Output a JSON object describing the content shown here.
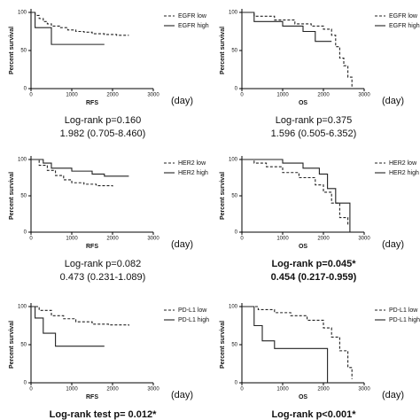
{
  "chart_data": [
    {
      "type": "line",
      "step": true,
      "xlabel": "RFS",
      "ylabel": "Percent survival",
      "annotation": "(day)",
      "stats": [
        "Log-rank p=0.160",
        "1.982 (0.705-8.460)"
      ],
      "stats_bold": false,
      "xlim": [
        0,
        3000
      ],
      "ylim": [
        0,
        100
      ],
      "xticks": [
        0,
        1000,
        2000,
        3000
      ],
      "yticks": [
        0,
        50,
        100
      ],
      "legend": "right",
      "series": [
        {
          "name": "EGFR low",
          "dashed": true,
          "color": "#222222",
          "x": [
            0,
            100,
            200,
            300,
            400,
            500,
            700,
            900,
            1100,
            1300,
            1500,
            1800,
            2100,
            2400
          ],
          "values": [
            100,
            96,
            92,
            88,
            85,
            82,
            80,
            77,
            75,
            74,
            72,
            71,
            70,
            70
          ]
        },
        {
          "name": "EGFR high",
          "dashed": false,
          "color": "#222222",
          "x": [
            0,
            100,
            500,
            1800
          ],
          "values": [
            100,
            80,
            58,
            58
          ]
        }
      ]
    },
    {
      "type": "line",
      "step": true,
      "xlabel": "OS",
      "ylabel": "Percent survival",
      "annotation": "(day)",
      "stats": [
        "Log-rank p=0.375",
        "1.596 (0.505-6.352)"
      ],
      "stats_bold": false,
      "xlim": [
        0,
        3000
      ],
      "ylim": [
        0,
        100
      ],
      "xticks": [
        0,
        1000,
        2000,
        3000
      ],
      "yticks": [
        0,
        50,
        100
      ],
      "legend": "right",
      "series": [
        {
          "name": "EGFR low",
          "dashed": true,
          "color": "#222222",
          "x": [
            0,
            300,
            800,
            1300,
            1700,
            2000,
            2200,
            2300,
            2400,
            2500,
            2600,
            2700
          ],
          "values": [
            100,
            95,
            90,
            85,
            82,
            78,
            70,
            55,
            40,
            30,
            15,
            0
          ]
        },
        {
          "name": "EGFR high",
          "dashed": false,
          "color": "#222222",
          "x": [
            0,
            300,
            1000,
            1500,
            1800,
            2200
          ],
          "values": [
            100,
            88,
            82,
            75,
            62,
            62
          ]
        }
      ]
    },
    {
      "type": "line",
      "step": true,
      "xlabel": "RFS",
      "ylabel": "Percent survival",
      "annotation": "(day)",
      "stats": [
        "Log-rank p=0.082",
        "0.473 (0.231-1.089)"
      ],
      "stats_bold": false,
      "xlim": [
        0,
        3000
      ],
      "ylim": [
        0,
        100
      ],
      "xticks": [
        0,
        1000,
        2000,
        3000
      ],
      "yticks": [
        0,
        50,
        100
      ],
      "legend": "right",
      "series": [
        {
          "name": "HER2 low",
          "dashed": true,
          "color": "#222222",
          "x": [
            0,
            200,
            400,
            600,
            800,
            1000,
            1300,
            1600,
            2000
          ],
          "values": [
            100,
            92,
            85,
            78,
            72,
            68,
            66,
            64,
            63
          ]
        },
        {
          "name": "HER2 high",
          "dashed": false,
          "color": "#222222",
          "x": [
            0,
            300,
            500,
            1000,
            1500,
            1800,
            2400
          ],
          "values": [
            100,
            95,
            88,
            84,
            80,
            77,
            77
          ]
        }
      ]
    },
    {
      "type": "line",
      "step": true,
      "xlabel": "OS",
      "ylabel": "Percent survival",
      "annotation": "(day)",
      "stats": [
        "Log-rank p=0.045*",
        "0.454 (0.217-0.959)"
      ],
      "stats_bold": true,
      "xlim": [
        0,
        3000
      ],
      "ylim": [
        0,
        100
      ],
      "xticks": [
        0,
        1000,
        2000,
        3000
      ],
      "yticks": [
        0,
        50,
        100
      ],
      "legend": "right",
      "series": [
        {
          "name": "HER2 low",
          "dashed": true,
          "color": "#222222",
          "x": [
            0,
            300,
            600,
            1000,
            1400,
            1800,
            2000,
            2200,
            2400,
            2600
          ],
          "values": [
            100,
            95,
            90,
            82,
            75,
            65,
            55,
            40,
            20,
            10
          ]
        },
        {
          "name": "HER2 high",
          "dashed": false,
          "color": "#222222",
          "x": [
            0,
            600,
            1000,
            1500,
            1900,
            2100,
            2300,
            2500,
            2650
          ],
          "values": [
            100,
            100,
            95,
            88,
            80,
            60,
            40,
            40,
            0
          ]
        }
      ]
    },
    {
      "type": "line",
      "step": true,
      "xlabel": "RFS",
      "ylabel": "Percent survival",
      "annotation": "(day)",
      "stats": [
        "Log-rank test  p= 0.012*"
      ],
      "stats_bold": true,
      "xlim": [
        0,
        3000
      ],
      "ylim": [
        0,
        100
      ],
      "xticks": [
        0,
        1000,
        2000,
        3000
      ],
      "yticks": [
        0,
        50,
        100
      ],
      "legend": "right",
      "series": [
        {
          "name": "PD-L1 low",
          "dashed": true,
          "color": "#222222",
          "x": [
            0,
            200,
            500,
            800,
            1100,
            1500,
            1900,
            2400
          ],
          "values": [
            100,
            95,
            88,
            84,
            80,
            77,
            76,
            75
          ]
        },
        {
          "name": "PD-L1 high",
          "dashed": false,
          "color": "#222222",
          "x": [
            0,
            100,
            300,
            600,
            1800
          ],
          "values": [
            100,
            85,
            65,
            48,
            48
          ]
        }
      ]
    },
    {
      "type": "line",
      "step": true,
      "xlabel": "OS",
      "ylabel": "Percent survival",
      "annotation": "(day)",
      "stats": [
        "Log-rank p<0.001*"
      ],
      "stats_bold": true,
      "xlim": [
        0,
        3000
      ],
      "ylim": [
        0,
        100
      ],
      "xticks": [
        0,
        1000,
        2000,
        3000
      ],
      "yticks": [
        0,
        50,
        100
      ],
      "legend": "right",
      "series": [
        {
          "name": "PD-L1 low",
          "dashed": true,
          "color": "#222222",
          "x": [
            0,
            400,
            800,
            1200,
            1600,
            2000,
            2200,
            2400,
            2600,
            2700
          ],
          "values": [
            100,
            96,
            92,
            88,
            82,
            72,
            60,
            42,
            20,
            5
          ]
        },
        {
          "name": "PD-L1 high",
          "dashed": false,
          "color": "#222222",
          "x": [
            0,
            300,
            500,
            800,
            1500,
            2100
          ],
          "values": [
            100,
            75,
            55,
            45,
            45,
            0
          ]
        }
      ]
    }
  ]
}
